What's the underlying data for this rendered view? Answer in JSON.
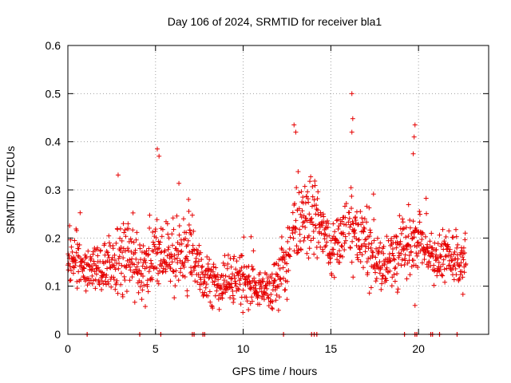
{
  "chart_data": {
    "type": "scatter",
    "title": "Day 106 of 2024, SRMTID for receiver bla1",
    "xlabel": "GPS time / hours",
    "ylabel": "SRMTID / TECUs",
    "xlim": [
      0,
      24
    ],
    "ylim": [
      0,
      0.6
    ],
    "xticks": [
      0,
      5,
      10,
      15,
      20
    ],
    "xtick_labels": [
      "0",
      "5",
      "10",
      "15",
      "20"
    ],
    "yticks": [
      0,
      0.1,
      0.2,
      0.3,
      0.4,
      0.5,
      0.6
    ],
    "ytick_labels": [
      "0",
      "0.1",
      "0.2",
      "0.3",
      "0.4",
      "0.5",
      "0.6"
    ],
    "grid": true,
    "marker": "plus",
    "color": "#e60000",
    "series_envelope": {
      "description": "hourly typical level (mean) and spread of SRMTID values",
      "hours": [
        0,
        1,
        2,
        3,
        4,
        5,
        6,
        7,
        8,
        9,
        10,
        11,
        12,
        13,
        14,
        15,
        16,
        17,
        18,
        19,
        20,
        21,
        22
      ],
      "mean": [
        0.16,
        0.13,
        0.14,
        0.17,
        0.14,
        0.17,
        0.16,
        0.17,
        0.11,
        0.11,
        0.12,
        0.09,
        0.1,
        0.22,
        0.25,
        0.17,
        0.22,
        0.19,
        0.14,
        0.17,
        0.19,
        0.15,
        0.16
      ],
      "spread": [
        0.05,
        0.04,
        0.05,
        0.07,
        0.06,
        0.07,
        0.06,
        0.07,
        0.04,
        0.04,
        0.05,
        0.04,
        0.04,
        0.08,
        0.06,
        0.05,
        0.07,
        0.06,
        0.05,
        0.07,
        0.06,
        0.04,
        0.05
      ],
      "extent_hours": [
        0,
        22.7
      ],
      "gap_hours": [
        [
          12.7,
          12.8
        ],
        [
          15.9,
          16.0
        ]
      ]
    },
    "peaks": [
      {
        "x": 5.1,
        "y": 0.385
      },
      {
        "x": 5.2,
        "y": 0.37
      },
      {
        "x": 12.9,
        "y": 0.435
      },
      {
        "x": 13.0,
        "y": 0.42
      },
      {
        "x": 16.2,
        "y": 0.5
      },
      {
        "x": 16.25,
        "y": 0.448
      },
      {
        "x": 16.2,
        "y": 0.42
      },
      {
        "x": 19.8,
        "y": 0.435
      },
      {
        "x": 19.75,
        "y": 0.41
      },
      {
        "x": 19.7,
        "y": 0.375
      },
      {
        "x": 19.8,
        "y": 0.06
      }
    ],
    "zero_points": [
      1.1,
      4.1,
      5.3,
      7.1,
      7.2,
      7.7,
      7.8,
      12.3,
      13.9,
      14.05,
      14.2,
      19.2,
      19.8,
      19.9,
      20.7,
      20.8,
      21.2,
      22.2
    ]
  }
}
